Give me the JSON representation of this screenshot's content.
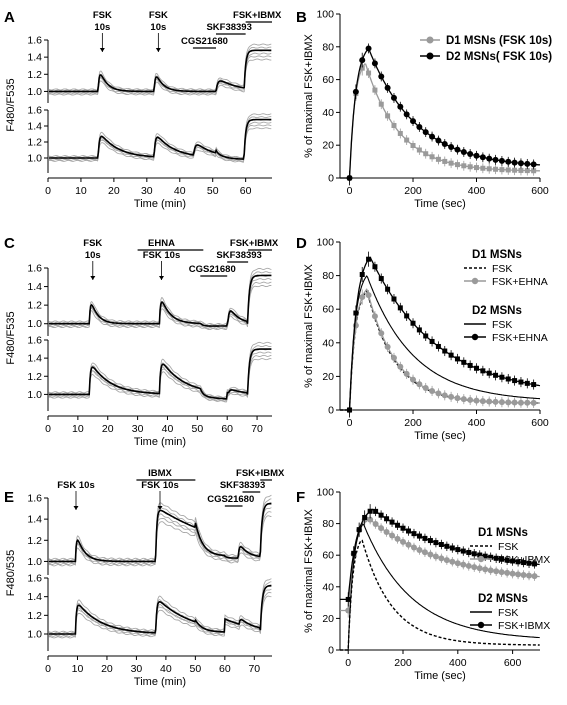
{
  "chart_data": [
    {
      "panel": "A",
      "type": "line",
      "xlabel": "Time (min)",
      "ylabel": "F480/F535",
      "xlim": [
        0,
        68
      ],
      "xticks": [
        0,
        10,
        20,
        30,
        40,
        50,
        60
      ],
      "ylim_top": [
        0.9,
        1.6
      ],
      "ylim_bottom": [
        0.85,
        1.6
      ],
      "yticks": [
        "1.0",
        "1.2",
        "1.4",
        "1.6"
      ],
      "annotations": [
        {
          "text": "FSK",
          "x": 16.5,
          "row": 0
        },
        {
          "text": "10s",
          "x": 16.5,
          "row": 1
        },
        {
          "text": "FSK",
          "x": 33.5,
          "row": 0
        },
        {
          "text": "10s",
          "x": 33.5,
          "row": 1
        },
        {
          "text": "CGS21680",
          "x": 47.5,
          "row": 2
        },
        {
          "text": "SKF38393",
          "x": 55,
          "row": 1
        },
        {
          "text": "FSK+IBMX",
          "x": 63.5,
          "row": 0
        }
      ],
      "bars": [
        [
          44,
          51
        ],
        [
          51,
          60
        ],
        [
          60,
          68
        ]
      ]
    },
    {
      "panel": "B",
      "type": "line",
      "xlabel": "Time (sec)",
      "ylabel": "% of maximal FSK+IBMX",
      "xlim": [
        -30,
        600
      ],
      "xticks": [
        0,
        200,
        400,
        600
      ],
      "ylim": [
        0,
        100
      ],
      "yticks": [
        0,
        20,
        40,
        60,
        80,
        100
      ],
      "legend": "top-right",
      "series": [
        {
          "name": "D1 MSNs (FSK 10s)",
          "color": "#9a9a9a",
          "peak_x": 50,
          "peak_y": 70,
          "baseline": 0,
          "tau": 105,
          "end": 4
        },
        {
          "name": "D2 MSNs( FSK 10s)",
          "color": "#000000",
          "peak_x": 60,
          "peak_y": 79,
          "baseline": 0,
          "tau": 150,
          "end": 6
        }
      ]
    },
    {
      "panel": "C",
      "type": "line",
      "xlabel": "Time (min)",
      "ylabel": "F480/F535",
      "xlim": [
        0,
        75
      ],
      "xticks": [
        0,
        10,
        20,
        30,
        40,
        50,
        60,
        70
      ],
      "ylim_top": [
        0.9,
        1.6
      ],
      "ylim_bottom": [
        0.85,
        1.6
      ],
      "yticks": [
        "1.0",
        "1.2",
        "1.4",
        "1.6"
      ],
      "annotations": [
        {
          "text": "FSK",
          "x": 15,
          "row": 0
        },
        {
          "text": "10s",
          "x": 15,
          "row": 1
        },
        {
          "text": "EHNA",
          "x": 38,
          "row": 0
        },
        {
          "text": "FSK 10s",
          "x": 38,
          "row": 1
        },
        {
          "text": "CGS21680",
          "x": 55,
          "row": 2
        },
        {
          "text": "SKF38393",
          "x": 64,
          "row": 1
        },
        {
          "text": "FSK+IBMX",
          "x": 69,
          "row": 0
        }
      ],
      "bars": [
        [
          30,
          52
        ],
        [
          51,
          60
        ],
        [
          60,
          67
        ],
        [
          67,
          75
        ]
      ]
    },
    {
      "panel": "D",
      "type": "line",
      "xlabel": "Time (sec)",
      "ylabel": "% of maximal FSK+IBMX",
      "xlim": [
        -30,
        600
      ],
      "xticks": [
        0,
        200,
        400,
        600
      ],
      "ylim": [
        0,
        100
      ],
      "yticks": [
        0,
        20,
        40,
        60,
        80,
        100
      ],
      "legend": "right",
      "group_labels": [
        "D1 MSNs",
        "D2 MSNs"
      ],
      "series": [
        {
          "name": "FSK",
          "group": "D1 MSNs",
          "style": "dashed",
          "color": "#000000",
          "peak_x": 55,
          "peak_y": 71,
          "tau": 90,
          "end": 4
        },
        {
          "name": "FSK+EHNA",
          "group": "D1 MSNs",
          "style": "gray-marker",
          "color": "#9a9a9a",
          "peak_x": 55,
          "peak_y": 72,
          "tau": 92,
          "end": 4
        },
        {
          "name": "FSK",
          "group": "D2 MSNs",
          "style": "solid",
          "color": "#000000",
          "peak_x": 55,
          "peak_y": 80,
          "tau": 145,
          "end": 5
        },
        {
          "name": "FSK+EHNA",
          "group": "D2 MSNs",
          "style": "black-marker",
          "color": "#000000",
          "peak_x": 65,
          "peak_y": 91,
          "tau": 210,
          "end": 8
        }
      ]
    },
    {
      "panel": "E",
      "type": "line",
      "xlabel": "Time (min)",
      "ylabel": "F480/535",
      "xlim": [
        0,
        76
      ],
      "xticks": [
        0,
        10,
        20,
        30,
        40,
        50,
        60,
        70
      ],
      "ylim_top": [
        0.9,
        1.6
      ],
      "ylim_bottom": [
        0.85,
        1.6
      ],
      "yticks": [
        "1.0",
        "1.2",
        "1.4",
        "1.6"
      ],
      "annotations": [
        {
          "text": "FSK 10s",
          "x": 9.5,
          "row": 1
        },
        {
          "text": "IBMX",
          "x": 38,
          "row": 0
        },
        {
          "text": "FSK 10s",
          "x": 38,
          "row": 1
        },
        {
          "text": "CGS21680",
          "x": 62,
          "row": 2
        },
        {
          "text": "SKF38393",
          "x": 66,
          "row": 1
        },
        {
          "text": "FSK+IBMX",
          "x": 72,
          "row": 0
        }
      ],
      "bars": [
        [
          30,
          50
        ],
        [
          60,
          66
        ],
        [
          66,
          72
        ],
        [
          72,
          76
        ]
      ]
    },
    {
      "panel": "F",
      "type": "line",
      "xlabel": "Time (sec)",
      "ylabel": "% of maximal FSK+IBMX",
      "xlim": [
        -30,
        700
      ],
      "xticks": [
        0,
        200,
        400,
        600
      ],
      "ylim": [
        0,
        100
      ],
      "yticks": [
        0,
        20,
        40,
        60,
        80,
        100
      ],
      "legend": "right",
      "group_labels": [
        "D1 MSNs",
        "D2 MSNs"
      ],
      "series": [
        {
          "name": "FSK",
          "group": "D1 MSNs",
          "style": "dashed",
          "color": "#000000",
          "baseline": 0,
          "peak_x": 50,
          "peak_y": 70,
          "tau": 110,
          "end": 3
        },
        {
          "name": "FSK+IBMX",
          "group": "D1 MSNs",
          "style": "gray-marker",
          "color": "#9a9a9a",
          "baseline": 25,
          "peak_x": 70,
          "peak_y": 84,
          "tau": 280,
          "end": 42
        },
        {
          "name": "FSK",
          "group": "D2 MSNs",
          "style": "solid",
          "color": "#000000",
          "baseline": 0,
          "peak_x": 55,
          "peak_y": 80,
          "tau": 175,
          "end": 6
        },
        {
          "name": "FSK+IBMX",
          "group": "D2 MSNs",
          "style": "black-marker",
          "color": "#000000",
          "baseline": 32,
          "peak_x": 90,
          "peak_y": 89,
          "tau": 320,
          "end": 48
        }
      ]
    }
  ]
}
